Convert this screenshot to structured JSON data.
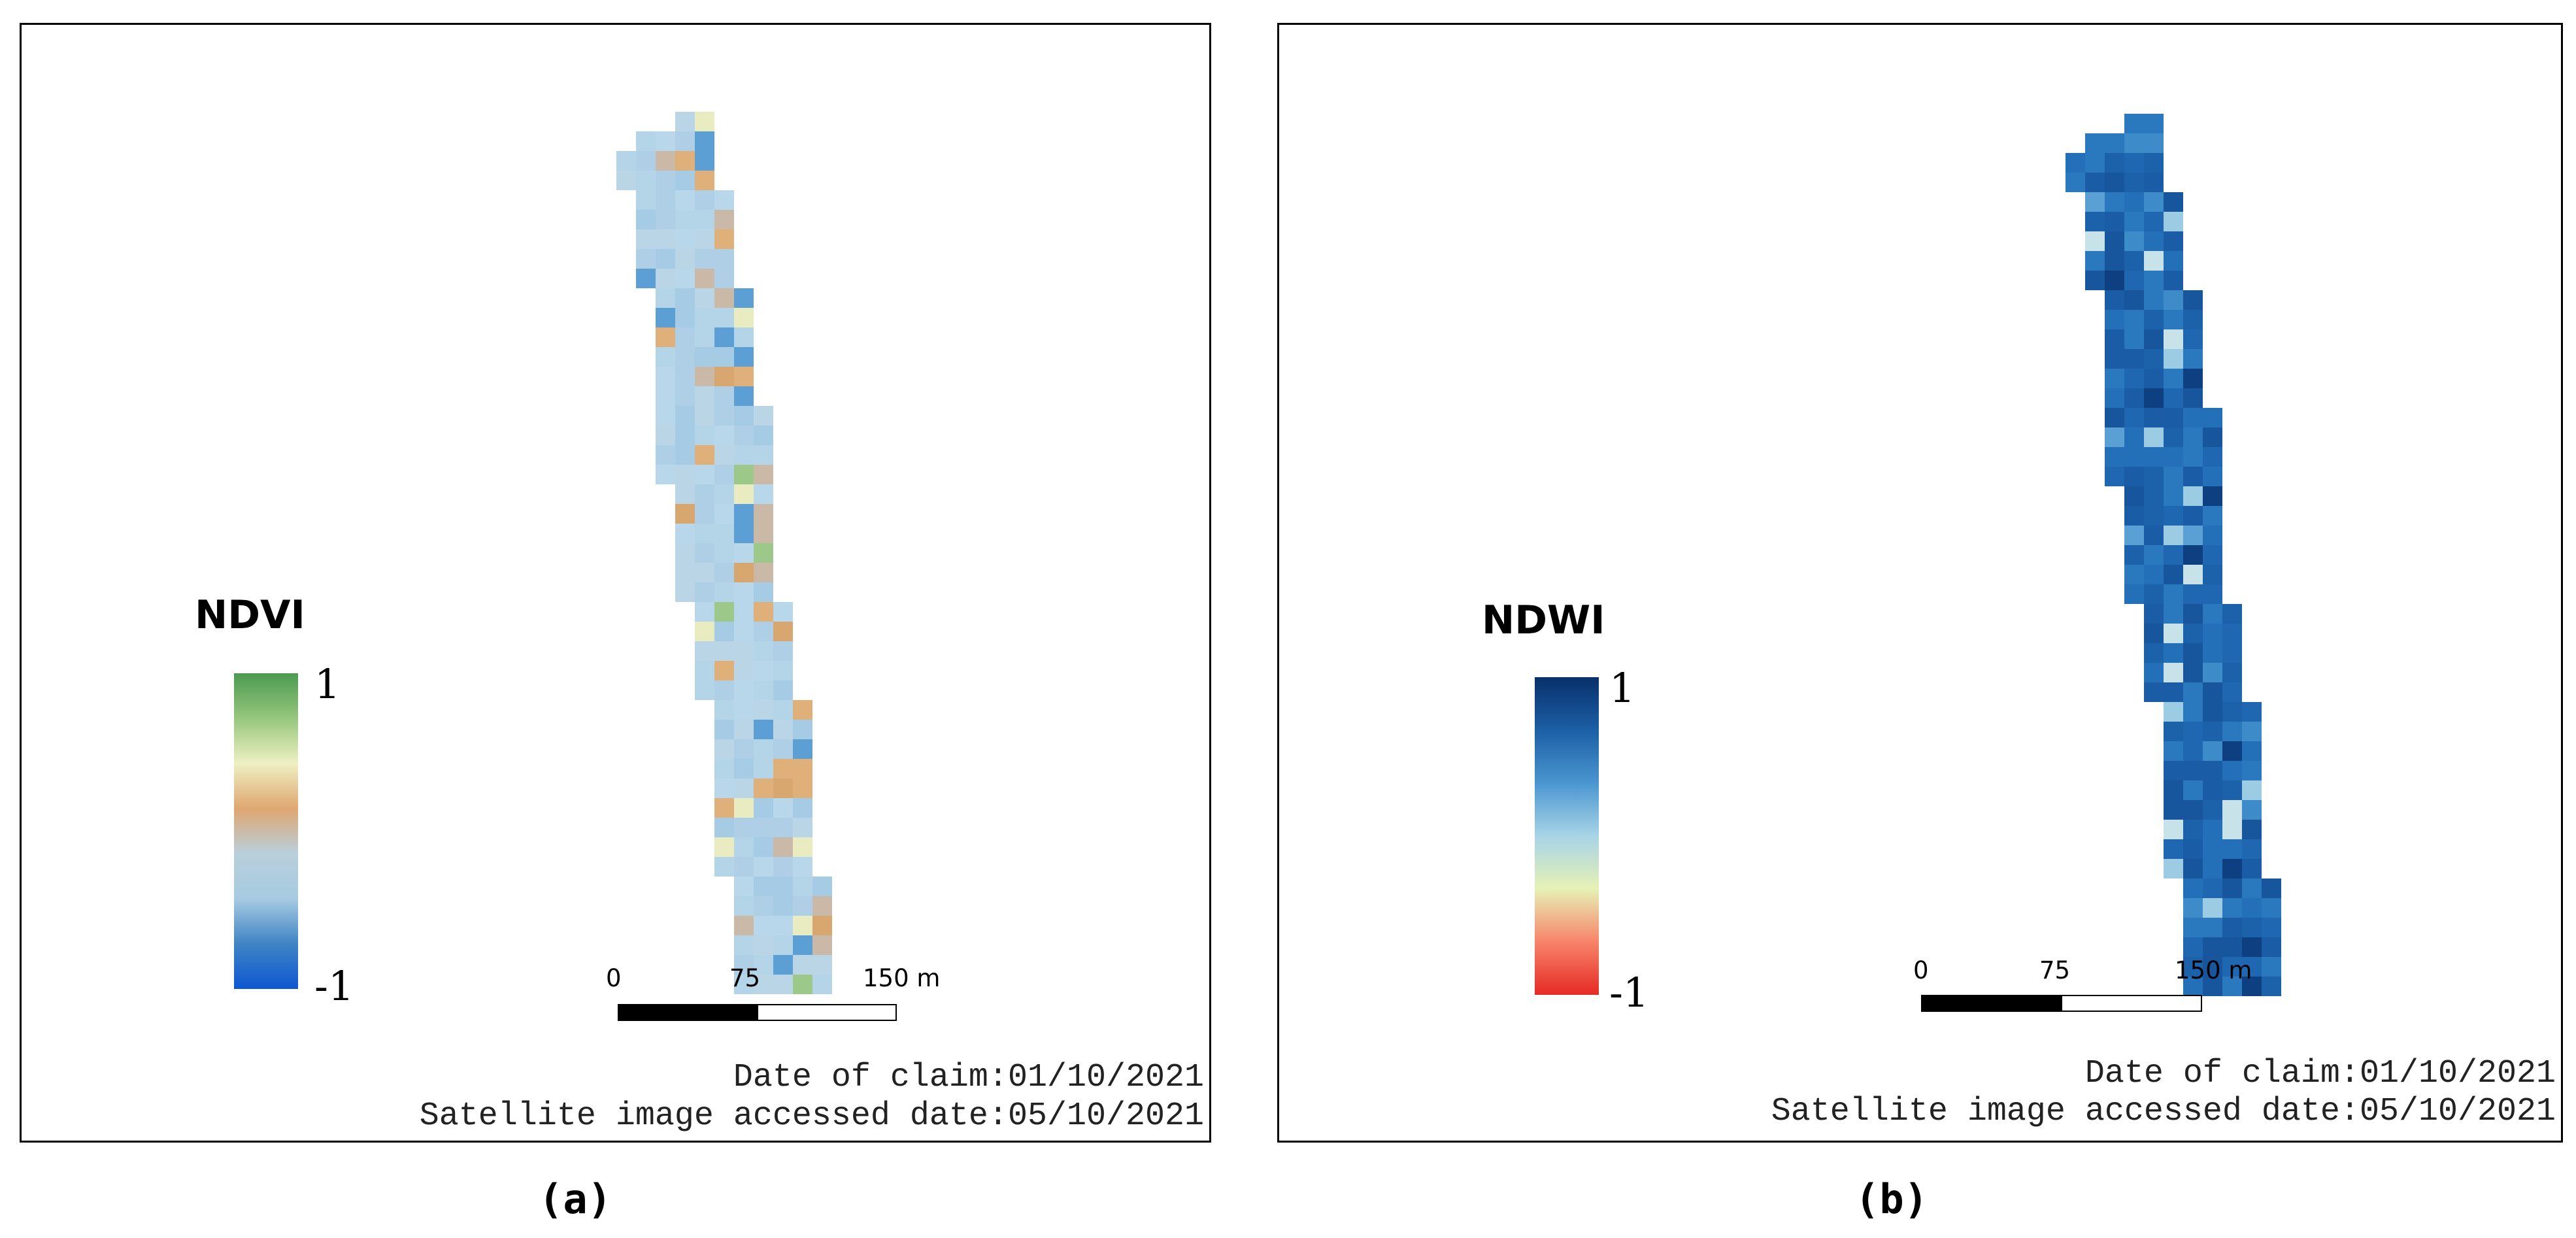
{
  "panels": [
    {
      "caption": "(a)",
      "legend": {
        "title": "NDVI",
        "max_label": "1",
        "min_label": "-1",
        "colors": [
          "#4a9a50",
          "#97c77d",
          "#eef0c2",
          "#dfa771",
          "#b9cfdb",
          "#a7cbe2",
          "#3f84c4",
          "#0d57d2"
        ]
      },
      "scale": {
        "labels": [
          "0",
          "75",
          "150 m"
        ]
      },
      "notes": {
        "claim": "Date of claim:01/10/2021",
        "accessed": "Satellite image accessed date:05/10/2021"
      }
    },
    {
      "caption": "(b)",
      "legend": {
        "title": "NDWI",
        "max_label": "1",
        "min_label": "-1",
        "colors": [
          "#08306b",
          "#1c5fa5",
          "#4a96d0",
          "#a8d4e6",
          "#e6f1b5",
          "#f7846a",
          "#e52a25"
        ]
      },
      "scale": {
        "labels": [
          "0",
          "75",
          "150 m"
        ]
      },
      "notes": {
        "claim": "Date of claim:01/10/2021",
        "accessed": "Satellite image accessed date:05/10/2021"
      }
    }
  ]
}
